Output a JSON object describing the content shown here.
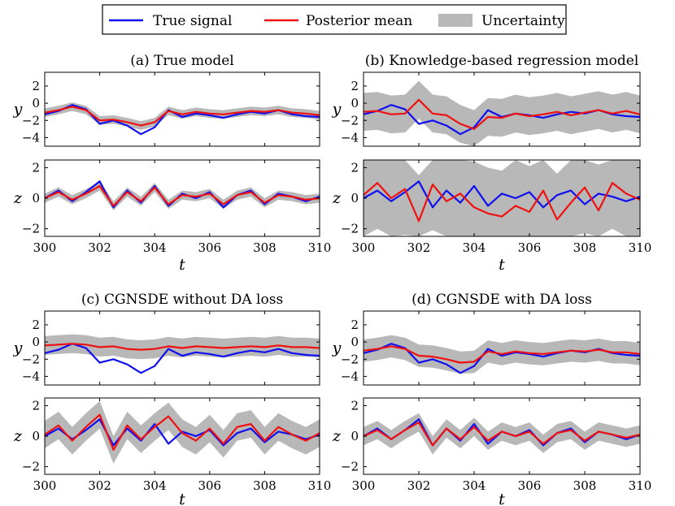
{
  "legend": [
    {
      "label": "True signal",
      "color": "#1010ee",
      "kind": "line"
    },
    {
      "label": "Posterior mean",
      "color": "#ee1111",
      "kind": "line"
    },
    {
      "label": "Uncertainty",
      "color": "#b8b8b8",
      "kind": "patch"
    }
  ],
  "colors": {
    "true": "#1010ee",
    "mean": "#ee1111",
    "band": "#b8b8b8"
  },
  "chart_data": [
    {
      "type": "line",
      "title": "(a) True model",
      "xlabel": "t",
      "xlim": [
        300,
        310
      ],
      "xticks": [
        "300",
        "302",
        "304",
        "306",
        "308",
        "310"
      ],
      "subplots": [
        {
          "ylabel": "y",
          "ylim": [
            -5,
            3.6
          ],
          "yticks": [
            "2",
            "0",
            "−2",
            "−4"
          ],
          "x": [
            300,
            300.5,
            301,
            301.5,
            302,
            302.5,
            303,
            303.5,
            304,
            304.5,
            305,
            305.5,
            306,
            306.5,
            307,
            307.5,
            308,
            308.5,
            309,
            309.5,
            310
          ],
          "series": [
            {
              "name": "True signal",
              "values": [
                -1.3,
                -0.9,
                -0.2,
                -0.7,
                -2.4,
                -2.0,
                -2.6,
                -3.6,
                -2.8,
                -0.8,
                -1.6,
                -1.2,
                -1.4,
                -1.7,
                -1.3,
                -1.0,
                -1.2,
                -0.8,
                -1.3,
                -1.5,
                -1.6
              ]
            },
            {
              "name": "Posterior mean",
              "values": [
                -1.1,
                -0.8,
                -0.4,
                -0.8,
                -2.0,
                -1.9,
                -2.2,
                -2.6,
                -2.2,
                -0.9,
                -1.3,
                -1.0,
                -1.2,
                -1.3,
                -1.1,
                -0.9,
                -1.0,
                -0.8,
                -1.1,
                -1.2,
                -1.4
              ],
              "band": 0.5
            }
          ]
        },
        {
          "ylabel": "z",
          "ylim": [
            -2.5,
            2.5
          ],
          "yticks": [
            "2",
            "0",
            "−2"
          ],
          "x": [
            300,
            300.5,
            301,
            301.5,
            302,
            302.5,
            303,
            303.5,
            304,
            304.5,
            305,
            305.5,
            306,
            306.5,
            307,
            307.5,
            308,
            308.5,
            309,
            309.5,
            310
          ],
          "series": [
            {
              "name": "True signal",
              "values": [
                0.0,
                0.5,
                -0.2,
                0.4,
                1.1,
                -0.6,
                0.5,
                -0.3,
                0.8,
                -0.5,
                0.3,
                0.0,
                0.4,
                -0.6,
                0.2,
                0.5,
                -0.4,
                0.3,
                0.1,
                -0.2,
                0.1
              ]
            },
            {
              "name": "Posterior mean",
              "values": [
                0.0,
                0.4,
                -0.1,
                0.3,
                0.8,
                -0.5,
                0.4,
                -0.2,
                0.7,
                -0.4,
                0.2,
                0.1,
                0.3,
                -0.4,
                0.2,
                0.4,
                -0.3,
                0.2,
                0.1,
                -0.1,
                0.0
              ],
              "band": 0.3
            }
          ]
        }
      ]
    },
    {
      "type": "line",
      "title": "(b) Knowledge-based regression model",
      "xlabel": "t",
      "xlim": [
        300,
        310
      ],
      "xticks": [
        "300",
        "302",
        "304",
        "306",
        "308",
        "310"
      ],
      "subplots": [
        {
          "ylabel": "y",
          "ylim": [
            -5,
            3.6
          ],
          "yticks": [
            "2",
            "0",
            "−2",
            "−4"
          ],
          "x": [
            300,
            300.5,
            301,
            301.5,
            302,
            302.5,
            303,
            303.5,
            304,
            304.5,
            305,
            305.5,
            306,
            306.5,
            307,
            307.5,
            308,
            308.5,
            309,
            309.5,
            310
          ],
          "series": [
            {
              "name": "True signal",
              "values": [
                -1.3,
                -0.9,
                -0.2,
                -0.7,
                -2.4,
                -2.0,
                -2.6,
                -3.6,
                -2.8,
                -0.8,
                -1.6,
                -1.2,
                -1.4,
                -1.7,
                -1.3,
                -1.0,
                -1.2,
                -0.8,
                -1.3,
                -1.5,
                -1.6
              ]
            },
            {
              "name": "Posterior mean",
              "values": [
                -1.0,
                -0.9,
                -1.3,
                -1.2,
                0.4,
                -1.2,
                -1.4,
                -2.4,
                -3.0,
                -1.6,
                -1.7,
                -1.2,
                -1.5,
                -1.3,
                -1.0,
                -1.4,
                -1.1,
                -0.8,
                -1.2,
                -0.9,
                -1.3
              ],
              "band": 2.2
            }
          ]
        },
        {
          "ylabel": "z",
          "ylim": [
            -2.5,
            2.5
          ],
          "yticks": [
            "2",
            "0",
            "−2"
          ],
          "x": [
            300,
            300.5,
            301,
            301.5,
            302,
            302.5,
            303,
            303.5,
            304,
            304.5,
            305,
            305.5,
            306,
            306.5,
            307,
            307.5,
            308,
            308.5,
            309,
            309.5,
            310
          ],
          "series": [
            {
              "name": "True signal",
              "values": [
                0.0,
                0.5,
                -0.2,
                0.4,
                1.1,
                -0.6,
                0.5,
                -0.3,
                0.8,
                -0.5,
                0.3,
                0.0,
                0.4,
                -0.6,
                0.2,
                0.5,
                -0.4,
                0.3,
                0.1,
                -0.2,
                0.1
              ]
            },
            {
              "name": "Posterior mean",
              "values": [
                0.2,
                1.0,
                0.0,
                0.6,
                -1.5,
                0.9,
                -0.2,
                0.3,
                -0.6,
                -1.0,
                -1.2,
                -0.5,
                -0.9,
                0.5,
                -1.4,
                -0.3,
                0.7,
                -0.8,
                1.0,
                0.3,
                -0.1
              ],
              "band": 3.0
            }
          ]
        }
      ]
    },
    {
      "type": "line",
      "title": "(c) CGNSDE without DA loss",
      "xlabel": "t",
      "xlim": [
        300,
        310
      ],
      "xticks": [
        "300",
        "302",
        "304",
        "306",
        "308",
        "310"
      ],
      "subplots": [
        {
          "ylabel": "y",
          "ylim": [
            -5,
            3.6
          ],
          "yticks": [
            "2",
            "0",
            "−2",
            "−4"
          ],
          "x": [
            300,
            300.5,
            301,
            301.5,
            302,
            302.5,
            303,
            303.5,
            304,
            304.5,
            305,
            305.5,
            306,
            306.5,
            307,
            307.5,
            308,
            308.5,
            309,
            309.5,
            310
          ],
          "series": [
            {
              "name": "True signal",
              "values": [
                -1.3,
                -0.9,
                -0.2,
                -0.7,
                -2.4,
                -2.0,
                -2.6,
                -3.6,
                -2.8,
                -0.8,
                -1.6,
                -1.2,
                -1.4,
                -1.7,
                -1.3,
                -1.0,
                -1.2,
                -0.8,
                -1.3,
                -1.5,
                -1.6
              ]
            },
            {
              "name": "Posterior mean",
              "values": [
                -0.4,
                -0.3,
                -0.2,
                -0.3,
                -0.6,
                -0.5,
                -0.8,
                -0.9,
                -0.8,
                -0.5,
                -0.7,
                -0.5,
                -0.6,
                -0.7,
                -0.6,
                -0.5,
                -0.6,
                -0.4,
                -0.6,
                -0.6,
                -0.7
              ],
              "band": 1.1
            }
          ]
        },
        {
          "ylabel": "z",
          "ylim": [
            -2.5,
            2.5
          ],
          "yticks": [
            "2",
            "0",
            "−2"
          ],
          "x": [
            300,
            300.5,
            301,
            301.5,
            302,
            302.5,
            303,
            303.5,
            304,
            304.5,
            305,
            305.5,
            306,
            306.5,
            307,
            307.5,
            308,
            308.5,
            309,
            309.5,
            310
          ],
          "series": [
            {
              "name": "True signal",
              "values": [
                0.0,
                0.5,
                -0.2,
                0.4,
                1.1,
                -0.6,
                0.5,
                -0.3,
                0.8,
                -0.5,
                0.3,
                0.0,
                0.4,
                -0.6,
                0.2,
                0.5,
                -0.4,
                0.3,
                0.1,
                -0.2,
                0.1
              ]
            },
            {
              "name": "Posterior mean",
              "values": [
                0.1,
                0.7,
                -0.3,
                0.6,
                1.4,
                -0.9,
                0.7,
                -0.2,
                0.6,
                1.3,
                0.2,
                -0.3,
                0.5,
                -0.5,
                0.6,
                0.8,
                -0.3,
                0.6,
                0.1,
                -0.3,
                0.2
              ],
              "band": 0.9
            }
          ]
        }
      ]
    },
    {
      "type": "line",
      "title": "(d) CGNSDE with DA loss",
      "xlabel": "t",
      "xlim": [
        300,
        310
      ],
      "xticks": [
        "300",
        "302",
        "304",
        "306",
        "308",
        "310"
      ],
      "subplots": [
        {
          "ylabel": "y",
          "ylim": [
            -5,
            3.6
          ],
          "yticks": [
            "2",
            "0",
            "−2",
            "−4"
          ],
          "x": [
            300,
            300.5,
            301,
            301.5,
            302,
            302.5,
            303,
            303.5,
            304,
            304.5,
            305,
            305.5,
            306,
            306.5,
            307,
            307.5,
            308,
            308.5,
            309,
            309.5,
            310
          ],
          "series": [
            {
              "name": "True signal",
              "values": [
                -1.3,
                -0.9,
                -0.2,
                -0.7,
                -2.4,
                -2.0,
                -2.6,
                -3.6,
                -2.8,
                -0.8,
                -1.6,
                -1.2,
                -1.4,
                -1.7,
                -1.3,
                -1.0,
                -1.2,
                -0.8,
                -1.3,
                -1.5,
                -1.6
              ]
            },
            {
              "name": "Posterior mean",
              "values": [
                -1.0,
                -0.8,
                -0.5,
                -0.8,
                -1.6,
                -1.7,
                -2.0,
                -2.4,
                -2.3,
                -1.1,
                -1.4,
                -1.1,
                -1.3,
                -1.4,
                -1.2,
                -1.0,
                -1.1,
                -0.9,
                -1.2,
                -1.2,
                -1.4
              ],
              "band": 1.3
            }
          ]
        },
        {
          "ylabel": "z",
          "ylim": [
            -2.5,
            2.5
          ],
          "yticks": [
            "2",
            "0",
            "−2"
          ],
          "x": [
            300,
            300.5,
            301,
            301.5,
            302,
            302.5,
            303,
            303.5,
            304,
            304.5,
            305,
            305.5,
            306,
            306.5,
            307,
            307.5,
            308,
            308.5,
            309,
            309.5,
            310
          ],
          "series": [
            {
              "name": "True signal",
              "values": [
                0.0,
                0.5,
                -0.2,
                0.4,
                1.1,
                -0.6,
                0.5,
                -0.3,
                0.8,
                -0.5,
                0.3,
                0.0,
                0.4,
                -0.6,
                0.2,
                0.5,
                -0.4,
                0.3,
                0.1,
                -0.2,
                0.1
              ]
            },
            {
              "name": "Posterior mean",
              "values": [
                0.0,
                0.4,
                -0.2,
                0.4,
                0.9,
                -0.6,
                0.5,
                -0.2,
                0.6,
                -0.3,
                0.3,
                0.0,
                0.3,
                -0.5,
                0.2,
                0.4,
                -0.3,
                0.3,
                0.1,
                -0.1,
                0.1
              ],
              "band": 0.6
            }
          ]
        }
      ]
    }
  ]
}
